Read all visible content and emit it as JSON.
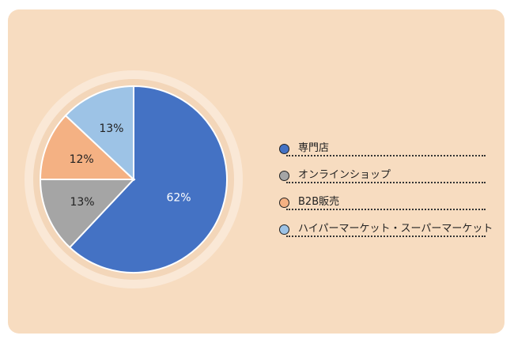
{
  "chart_data": {
    "type": "pie",
    "slices": [
      {
        "label": "専門店",
        "value": 62,
        "display": "62%",
        "color": "#4472c4"
      },
      {
        "label": "オンラインショップ",
        "value": 13,
        "display": "13%",
        "color": "#a5a5a5"
      },
      {
        "label": "B2B販売",
        "value": 12,
        "display": "12%",
        "color": "#f4b183"
      },
      {
        "label": "ハイパーマーケット・スーパーマーケット",
        "value": 13,
        "display": "13%",
        "color": "#9dc3e6"
      }
    ],
    "legend_position": "right"
  },
  "colors": {
    "background": "#f7dcc0",
    "outer_ring": "#fae8d6",
    "inner_ring": "#f3d6b9",
    "slice_border": "#ffffff"
  }
}
